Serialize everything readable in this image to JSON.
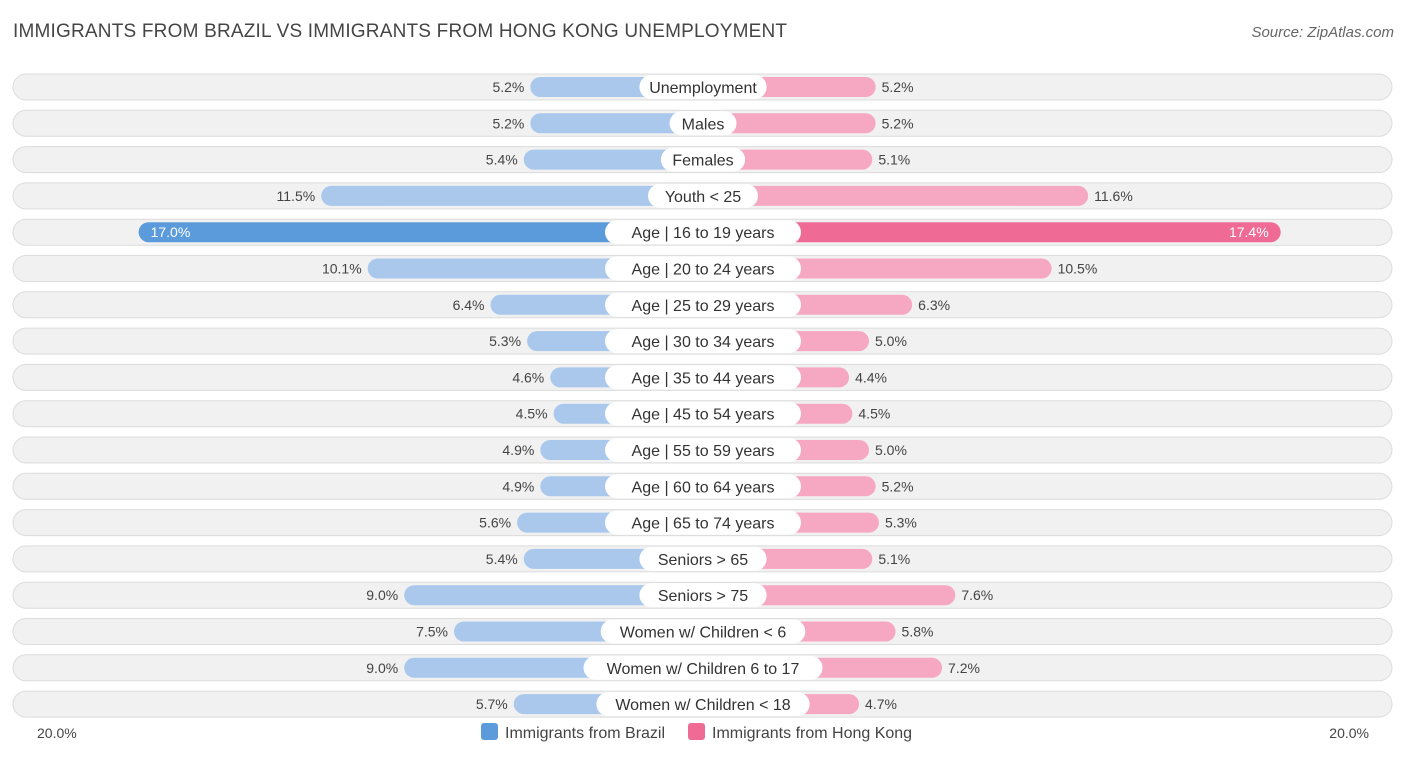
{
  "header": {
    "title": "IMMIGRANTS FROM BRAZIL VS IMMIGRANTS FROM HONG KONG UNEMPLOYMENT",
    "source": "Source: ZipAtlas.com"
  },
  "chart_data": {
    "type": "bar",
    "orientation": "horizontal-diverging",
    "categories": [
      "Unemployment",
      "Males",
      "Females",
      "Youth < 25",
      "Age | 16 to 19 years",
      "Age | 20 to 24 years",
      "Age | 25 to 29 years",
      "Age | 30 to 34 years",
      "Age | 35 to 44 years",
      "Age | 45 to 54 years",
      "Age | 55 to 59 years",
      "Age | 60 to 64 years",
      "Age | 65 to 74 years",
      "Seniors > 65",
      "Seniors > 75",
      "Women w/ Children < 6",
      "Women w/ Children 6 to 17",
      "Women w/ Children < 18"
    ],
    "series": [
      {
        "name": "Immigrants from Brazil",
        "color": "#5b9bdb",
        "color_light": "#a9c8ec",
        "values": [
          5.2,
          5.2,
          5.4,
          11.5,
          17.0,
          10.1,
          6.4,
          5.3,
          4.6,
          4.5,
          4.9,
          4.9,
          5.6,
          5.4,
          9.0,
          7.5,
          9.0,
          5.7
        ],
        "labels": [
          "5.2%",
          "5.2%",
          "5.4%",
          "11.5%",
          "17.0%",
          "10.1%",
          "6.4%",
          "5.3%",
          "4.6%",
          "4.5%",
          "4.9%",
          "4.9%",
          "5.6%",
          "5.4%",
          "9.0%",
          "7.5%",
          "9.0%",
          "5.7%"
        ]
      },
      {
        "name": "Immigrants from Hong Kong",
        "color": "#f06a96",
        "color_light": "#f6a8c2",
        "values": [
          5.2,
          5.2,
          5.1,
          11.6,
          17.4,
          10.5,
          6.3,
          5.0,
          4.4,
          4.5,
          5.0,
          5.2,
          5.3,
          5.1,
          7.6,
          5.8,
          7.2,
          4.7
        ],
        "labels": [
          "5.2%",
          "5.2%",
          "5.1%",
          "11.6%",
          "17.4%",
          "10.5%",
          "6.3%",
          "5.0%",
          "4.4%",
          "4.5%",
          "5.0%",
          "5.2%",
          "5.3%",
          "5.1%",
          "7.6%",
          "5.8%",
          "7.2%",
          "4.7%"
        ]
      }
    ],
    "xlim": [
      0,
      20.0
    ],
    "axis_left_label": "20.0%",
    "axis_right_label": "20.0%",
    "legend_position": "bottom-center",
    "grid": false
  }
}
